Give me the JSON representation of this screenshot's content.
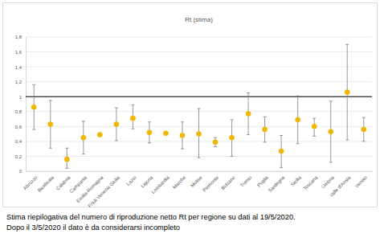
{
  "chart_data": {
    "type": "scatter",
    "title": "Rt (stima)",
    "categories": [
      "Abruzzo",
      "Basilicata",
      "Calabria",
      "Campania",
      "Emilia-Romagna",
      "Friuli Venezia Giulia",
      "Lazio",
      "Liguria",
      "Lombardia",
      "Marche",
      "Molise",
      "Piemonte",
      "Bolzano",
      "Trento",
      "Puglia",
      "Sardegna",
      "Sicilia",
      "Toscana",
      "Umbria",
      "Valle d'Aosta",
      "Veneto"
    ],
    "values": [
      0.86,
      0.63,
      0.16,
      0.45,
      0.49,
      0.63,
      0.71,
      0.52,
      0.51,
      0.48,
      0.5,
      0.39,
      0.45,
      0.77,
      0.56,
      0.27,
      0.69,
      0.6,
      0.53,
      1.06,
      0.56
    ],
    "lower": [
      0.56,
      0.31,
      0.04,
      0.23,
      0.47,
      0.41,
      0.57,
      0.38,
      0.49,
      0.3,
      0.18,
      0.33,
      0.2,
      0.49,
      0.39,
      0.05,
      0.37,
      0.47,
      0.12,
      0.42,
      0.4
    ],
    "upper": [
      1.16,
      0.95,
      0.31,
      0.67,
      0.51,
      0.85,
      0.89,
      0.66,
      0.53,
      0.66,
      0.84,
      0.45,
      0.69,
      1.05,
      0.73,
      0.48,
      1.01,
      0.71,
      0.94,
      1.7,
      0.72
    ],
    "color": "#f2b705",
    "marker": "circle",
    "hline": 1,
    "ylim": [
      0,
      1.8
    ],
    "yticks": [
      0,
      {
        "value": 0.2,
        "label": "0,2"
      },
      {
        "value": 0.4,
        "label": "0,4"
      },
      {
        "value": 0.6,
        "label": "0,6"
      },
      {
        "value": 0.8,
        "label": "0,8"
      },
      1,
      {
        "value": 1.2,
        "label": "1,2"
      },
      {
        "value": 1.4,
        "label": "1,4"
      },
      {
        "value": 1.6,
        "label": "1,6"
      },
      {
        "value": 1.8,
        "label": "1,8"
      }
    ],
    "grid": true,
    "caption": [
      "Stima riepilogativa del numero di riproduzione netto Rt per regione su dati al 19/5/2020.",
      "Dopo il 3/5/2020 il dato è da considerarsi incompleto"
    ]
  }
}
